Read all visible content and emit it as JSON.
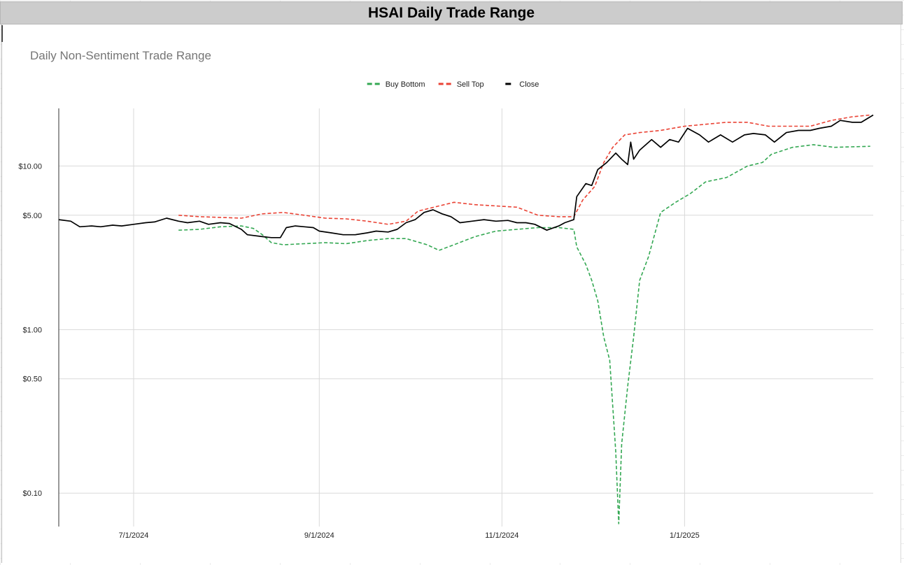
{
  "sheet_title": "HSAI Daily Trade Range",
  "chart_data": {
    "type": "line",
    "title": "Daily Non-Sentiment Trade Range",
    "xlabel": "",
    "ylabel": "",
    "y_scale": "log",
    "ylim": [
      0.0625,
      22.5
    ],
    "xlim": [
      "2024-06-06",
      "2025-03-05"
    ],
    "y_ticks": [
      {
        "value": 10,
        "label": "$10.00"
      },
      {
        "value": 5,
        "label": "$5.00"
      },
      {
        "value": 1,
        "label": "$1.00"
      },
      {
        "value": 0.5,
        "label": "$0.50"
      },
      {
        "value": 0.1,
        "label": "$0.10"
      }
    ],
    "x_ticks": [
      {
        "value": "2024-07-01",
        "label": "7/1/2024"
      },
      {
        "value": "2024-09-01",
        "label": "9/1/2024"
      },
      {
        "value": "2024-11-01",
        "label": "11/1/2024"
      },
      {
        "value": "2025-01-01",
        "label": "1/1/2025"
      }
    ],
    "grid": true,
    "legend_position": "top",
    "series": [
      {
        "name": "Buy Bottom",
        "color": "#34a853",
        "style": "dashed",
        "points": [
          [
            "2024-07-16",
            4.05
          ],
          [
            "2024-07-23",
            4.1
          ],
          [
            "2024-07-30",
            4.25
          ],
          [
            "2024-08-06",
            4.3
          ],
          [
            "2024-08-10",
            4.15
          ],
          [
            "2024-08-13",
            3.8
          ],
          [
            "2024-08-16",
            3.4
          ],
          [
            "2024-08-20",
            3.3
          ],
          [
            "2024-08-27",
            3.35
          ],
          [
            "2024-09-03",
            3.4
          ],
          [
            "2024-09-10",
            3.35
          ],
          [
            "2024-09-17",
            3.5
          ],
          [
            "2024-09-24",
            3.6
          ],
          [
            "2024-09-30",
            3.6
          ],
          [
            "2024-10-07",
            3.3
          ],
          [
            "2024-10-11",
            3.05
          ],
          [
            "2024-10-16",
            3.3
          ],
          [
            "2024-10-23",
            3.7
          ],
          [
            "2024-10-30",
            4.0
          ],
          [
            "2024-11-06",
            4.1
          ],
          [
            "2024-11-13",
            4.2
          ],
          [
            "2024-11-20",
            4.2
          ],
          [
            "2024-11-25",
            4.1
          ],
          [
            "2024-11-26",
            3.2
          ],
          [
            "2024-11-29",
            2.5
          ],
          [
            "2024-12-01",
            2.0
          ],
          [
            "2024-12-03",
            1.5
          ],
          [
            "2024-12-05",
            0.9
          ],
          [
            "2024-12-07",
            0.65
          ],
          [
            "2024-12-09",
            0.18
          ],
          [
            "2024-12-10",
            0.065
          ],
          [
            "2024-12-11",
            0.2
          ],
          [
            "2024-12-13",
            0.45
          ],
          [
            "2024-12-15",
            0.9
          ],
          [
            "2024-12-17",
            2.0
          ],
          [
            "2024-12-20",
            2.8
          ],
          [
            "2024-12-24",
            5.2
          ],
          [
            "2024-12-29",
            6.0
          ],
          [
            "2025-01-03",
            6.8
          ],
          [
            "2025-01-08",
            8.0
          ],
          [
            "2025-01-15",
            8.5
          ],
          [
            "2025-01-22",
            10.0
          ],
          [
            "2025-01-27",
            10.5
          ],
          [
            "2025-01-30",
            11.8
          ],
          [
            "2025-02-06",
            13.0
          ],
          [
            "2025-02-13",
            13.5
          ],
          [
            "2025-02-20",
            13.0
          ],
          [
            "2025-03-04",
            13.2
          ]
        ]
      },
      {
        "name": "Sell Top",
        "color": "#ea4335",
        "style": "dashed",
        "points": [
          [
            "2024-07-16",
            5.0
          ],
          [
            "2024-07-23",
            4.9
          ],
          [
            "2024-07-30",
            4.85
          ],
          [
            "2024-08-06",
            4.8
          ],
          [
            "2024-08-13",
            5.1
          ],
          [
            "2024-08-20",
            5.2
          ],
          [
            "2024-08-27",
            5.0
          ],
          [
            "2024-09-03",
            4.8
          ],
          [
            "2024-09-10",
            4.75
          ],
          [
            "2024-09-17",
            4.6
          ],
          [
            "2024-09-24",
            4.4
          ],
          [
            "2024-09-30",
            4.6
          ],
          [
            "2024-10-04",
            5.3
          ],
          [
            "2024-10-11",
            5.7
          ],
          [
            "2024-10-16",
            6.0
          ],
          [
            "2024-10-23",
            5.8
          ],
          [
            "2024-10-30",
            5.7
          ],
          [
            "2024-11-06",
            5.6
          ],
          [
            "2024-11-13",
            5.0
          ],
          [
            "2024-11-20",
            4.9
          ],
          [
            "2024-11-25",
            4.9
          ],
          [
            "2024-11-28",
            6.2
          ],
          [
            "2024-12-02",
            7.5
          ],
          [
            "2024-12-05",
            10.5
          ],
          [
            "2024-12-08",
            13.0
          ],
          [
            "2024-12-12",
            15.5
          ],
          [
            "2024-12-17",
            16.0
          ],
          [
            "2024-12-24",
            16.5
          ],
          [
            "2025-01-01",
            17.5
          ],
          [
            "2025-01-08",
            18.0
          ],
          [
            "2025-01-15",
            18.5
          ],
          [
            "2025-01-22",
            18.5
          ],
          [
            "2025-01-29",
            17.5
          ],
          [
            "2025-02-05",
            17.5
          ],
          [
            "2025-02-12",
            17.5
          ],
          [
            "2025-02-19",
            19.0
          ],
          [
            "2025-02-26",
            20.0
          ],
          [
            "2025-03-04",
            20.5
          ]
        ]
      },
      {
        "name": "Close",
        "color": "#000000",
        "style": "solid",
        "points": [
          [
            "2024-06-06",
            4.7
          ],
          [
            "2024-06-10",
            4.6
          ],
          [
            "2024-06-13",
            4.25
          ],
          [
            "2024-06-17",
            4.3
          ],
          [
            "2024-06-20",
            4.25
          ],
          [
            "2024-06-24",
            4.35
          ],
          [
            "2024-06-27",
            4.3
          ],
          [
            "2024-07-01",
            4.4
          ],
          [
            "2024-07-05",
            4.5
          ],
          [
            "2024-07-08",
            4.55
          ],
          [
            "2024-07-12",
            4.8
          ],
          [
            "2024-07-16",
            4.6
          ],
          [
            "2024-07-19",
            4.5
          ],
          [
            "2024-07-23",
            4.6
          ],
          [
            "2024-07-26",
            4.4
          ],
          [
            "2024-07-30",
            4.5
          ],
          [
            "2024-08-02",
            4.45
          ],
          [
            "2024-08-06",
            4.1
          ],
          [
            "2024-08-08",
            3.8
          ],
          [
            "2024-08-13",
            3.7
          ],
          [
            "2024-08-16",
            3.65
          ],
          [
            "2024-08-19",
            3.65
          ],
          [
            "2024-08-21",
            4.2
          ],
          [
            "2024-08-24",
            4.3
          ],
          [
            "2024-08-27",
            4.25
          ],
          [
            "2024-08-30",
            4.2
          ],
          [
            "2024-09-01",
            4.0
          ],
          [
            "2024-09-05",
            3.9
          ],
          [
            "2024-09-09",
            3.8
          ],
          [
            "2024-09-13",
            3.8
          ],
          [
            "2024-09-17",
            3.9
          ],
          [
            "2024-09-20",
            4.0
          ],
          [
            "2024-09-24",
            3.95
          ],
          [
            "2024-09-27",
            4.1
          ],
          [
            "2024-09-30",
            4.5
          ],
          [
            "2024-10-03",
            4.7
          ],
          [
            "2024-10-06",
            5.2
          ],
          [
            "2024-10-09",
            5.4
          ],
          [
            "2024-10-12",
            5.1
          ],
          [
            "2024-10-15",
            4.9
          ],
          [
            "2024-10-18",
            4.5
          ],
          [
            "2024-10-22",
            4.6
          ],
          [
            "2024-10-26",
            4.7
          ],
          [
            "2024-10-30",
            4.6
          ],
          [
            "2024-11-03",
            4.65
          ],
          [
            "2024-11-06",
            4.5
          ],
          [
            "2024-11-09",
            4.5
          ],
          [
            "2024-11-12",
            4.4
          ],
          [
            "2024-11-16",
            4.05
          ],
          [
            "2024-11-20",
            4.3
          ],
          [
            "2024-11-22",
            4.5
          ],
          [
            "2024-11-25",
            4.7
          ],
          [
            "2024-11-26",
            6.5
          ],
          [
            "2024-11-29",
            7.8
          ],
          [
            "2024-12-01",
            7.6
          ],
          [
            "2024-12-03",
            9.5
          ],
          [
            "2024-12-06",
            10.5
          ],
          [
            "2024-12-09",
            12.0
          ],
          [
            "2024-12-11",
            11.0
          ],
          [
            "2024-12-13",
            10.2
          ],
          [
            "2024-12-14",
            14.0
          ],
          [
            "2024-12-15",
            11.0
          ],
          [
            "2024-12-17",
            12.5
          ],
          [
            "2024-12-21",
            14.5
          ],
          [
            "2024-12-24",
            13.0
          ],
          [
            "2024-12-27",
            14.5
          ],
          [
            "2024-12-30",
            14.0
          ],
          [
            "2025-01-02",
            17.0
          ],
          [
            "2025-01-06",
            15.5
          ],
          [
            "2025-01-09",
            14.0
          ],
          [
            "2025-01-13",
            15.5
          ],
          [
            "2025-01-17",
            14.0
          ],
          [
            "2025-01-21",
            15.5
          ],
          [
            "2025-01-24",
            15.8
          ],
          [
            "2025-01-28",
            15.5
          ],
          [
            "2025-01-31",
            14.0
          ],
          [
            "2025-02-04",
            16.0
          ],
          [
            "2025-02-08",
            16.5
          ],
          [
            "2025-02-12",
            16.5
          ],
          [
            "2025-02-15",
            17.0
          ],
          [
            "2025-02-19",
            17.5
          ],
          [
            "2025-02-22",
            19.0
          ],
          [
            "2025-02-26",
            18.5
          ],
          [
            "2025-03-01",
            18.5
          ],
          [
            "2025-03-05",
            20.5
          ]
        ]
      }
    ]
  }
}
